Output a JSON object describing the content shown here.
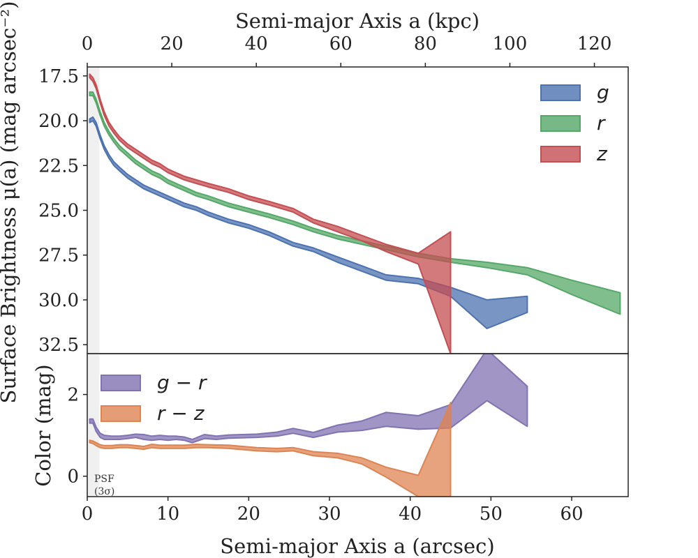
{
  "chart_data": [
    {
      "type": "area",
      "panel": "surface-brightness",
      "top_xlabel": "Semi-major Axis a (kpc)",
      "top_xlim": [
        0,
        128
      ],
      "top_xticks": [
        0,
        20,
        40,
        60,
        80,
        100,
        120
      ],
      "ylabel": "Surface Brightness μ(a) (mag arcsec⁻²)",
      "ylim": [
        17,
        33
      ],
      "y_inverted": true,
      "yticks": [
        "17.5",
        "20.0",
        "22.5",
        "25.0",
        "27.5",
        "30.0",
        "32.5"
      ],
      "ytick_values": [
        17.5,
        20.0,
        22.5,
        25.0,
        27.5,
        30.0,
        32.5
      ],
      "xlim": [
        0,
        67
      ],
      "legend_position": "top-right",
      "psf_band_x": [
        0,
        1.5
      ],
      "series": [
        {
          "name": "g",
          "color": "#4c72b0",
          "points": [
            [
              0.3,
              19.9,
              20.1
            ],
            [
              0.7,
              19.8,
              20.0
            ],
            [
              1.1,
              20.1,
              20.3
            ],
            [
              1.6,
              20.8,
              21.0
            ],
            [
              2.1,
              21.4,
              21.6
            ],
            [
              2.7,
              21.9,
              22.1
            ],
            [
              3.3,
              22.3,
              22.5
            ],
            [
              4.0,
              22.6,
              22.8
            ],
            [
              5.0,
              23.0,
              23.2
            ],
            [
              6.0,
              23.3,
              23.5
            ],
            [
              7.0,
              23.6,
              23.8
            ],
            [
              8.0,
              23.8,
              24.0
            ],
            [
              9.0,
              24.0,
              24.2
            ],
            [
              10.0,
              24.2,
              24.4
            ],
            [
              11.0,
              24.4,
              24.6
            ],
            [
              12.0,
              24.6,
              24.8
            ],
            [
              13.5,
              24.8,
              25.0
            ],
            [
              15.0,
              25.1,
              25.3
            ],
            [
              17.5,
              25.5,
              25.7
            ],
            [
              20.0,
              25.8,
              26.0
            ],
            [
              22.5,
              26.2,
              26.4
            ],
            [
              25.5,
              26.8,
              27.0
            ],
            [
              28.0,
              27.1,
              27.3
            ],
            [
              31.0,
              27.6,
              27.9
            ],
            [
              34.0,
              28.1,
              28.4
            ],
            [
              37.0,
              28.6,
              28.9
            ],
            [
              41.0,
              28.8,
              29.1
            ],
            [
              45.0,
              29.3,
              29.8
            ],
            [
              49.5,
              30.0,
              31.6
            ],
            [
              54.5,
              29.8,
              30.7
            ]
          ]
        },
        {
          "name": "r",
          "color": "#55a868",
          "points": [
            [
              0.3,
              18.4,
              18.6
            ],
            [
              0.7,
              18.4,
              18.6
            ],
            [
              1.1,
              18.8,
              19.0
            ],
            [
              1.6,
              19.5,
              19.7
            ],
            [
              2.1,
              20.1,
              20.3
            ],
            [
              2.7,
              20.6,
              20.8
            ],
            [
              3.3,
              21.0,
              21.2
            ],
            [
              4.0,
              21.4,
              21.6
            ],
            [
              5.0,
              21.8,
              22.0
            ],
            [
              6.0,
              22.2,
              22.4
            ],
            [
              7.0,
              22.5,
              22.7
            ],
            [
              8.0,
              22.8,
              23.0
            ],
            [
              9.0,
              23.0,
              23.2
            ],
            [
              10.0,
              23.3,
              23.5
            ],
            [
              11.0,
              23.5,
              23.7
            ],
            [
              12.0,
              23.7,
              23.9
            ],
            [
              13.5,
              24.0,
              24.2
            ],
            [
              15.0,
              24.2,
              24.4
            ],
            [
              17.5,
              24.6,
              24.8
            ],
            [
              20.0,
              24.9,
              25.1
            ],
            [
              22.5,
              25.2,
              25.4
            ],
            [
              25.5,
              25.6,
              25.8
            ],
            [
              28.0,
              26.0,
              26.2
            ],
            [
              31.0,
              26.4,
              26.6
            ],
            [
              34.0,
              26.7,
              26.9
            ],
            [
              37.0,
              27.0,
              27.2
            ],
            [
              41.0,
              27.4,
              27.6
            ],
            [
              45.0,
              27.7,
              27.9
            ],
            [
              49.5,
              27.9,
              28.2
            ],
            [
              54.5,
              28.2,
              28.6
            ],
            [
              60.0,
              28.9,
              29.7
            ],
            [
              66.0,
              29.6,
              30.8
            ]
          ]
        },
        {
          "name": "z",
          "color": "#c44e52",
          "points": [
            [
              0.3,
              17.4,
              17.6
            ],
            [
              0.7,
              17.6,
              17.8
            ],
            [
              1.1,
              18.0,
              18.2
            ],
            [
              1.6,
              18.8,
              19.0
            ],
            [
              2.1,
              19.5,
              19.7
            ],
            [
              2.7,
              20.1,
              20.3
            ],
            [
              3.3,
              20.5,
              20.7
            ],
            [
              4.0,
              20.9,
              21.1
            ],
            [
              5.0,
              21.3,
              21.5
            ],
            [
              6.0,
              21.6,
              21.8
            ],
            [
              7.0,
              21.9,
              22.1
            ],
            [
              8.0,
              22.2,
              22.4
            ],
            [
              9.0,
              22.4,
              22.6
            ],
            [
              10.0,
              22.7,
              22.9
            ],
            [
              11.0,
              22.9,
              23.1
            ],
            [
              12.0,
              23.1,
              23.3
            ],
            [
              13.5,
              23.3,
              23.5
            ],
            [
              15.0,
              23.5,
              23.7
            ],
            [
              17.5,
              23.8,
              24.0
            ],
            [
              20.0,
              24.2,
              24.4
            ],
            [
              22.5,
              24.5,
              24.7
            ],
            [
              25.5,
              24.9,
              25.1
            ],
            [
              28.0,
              25.5,
              25.7
            ],
            [
              31.0,
              25.9,
              26.2
            ],
            [
              34.0,
              26.4,
              26.7
            ],
            [
              37.0,
              26.9,
              27.3
            ],
            [
              41.0,
              27.4,
              28.0
            ],
            [
              45.0,
              26.2,
              33.0
            ]
          ]
        }
      ]
    },
    {
      "type": "area",
      "panel": "color",
      "xlabel": "Semi-major Axis a (arcsec)",
      "xlim": [
        0,
        67
      ],
      "xticks": [
        0,
        10,
        20,
        30,
        40,
        50,
        60
      ],
      "ylabel": "Color (mag)",
      "ylim": [
        -0.5,
        3.0
      ],
      "yticks": [
        0,
        2
      ],
      "legend_position": "top-left",
      "psf_label_line1": "PSF",
      "psf_label_line2": "(3σ)",
      "series": [
        {
          "name": "g − r",
          "color": "#8172b2",
          "points": [
            [
              0.3,
              1.3,
              1.4
            ],
            [
              0.7,
              1.3,
              1.4
            ],
            [
              1.1,
              1.1,
              1.2
            ],
            [
              1.6,
              0.95,
              1.05
            ],
            [
              2.1,
              0.9,
              1.0
            ],
            [
              3.0,
              0.9,
              0.98
            ],
            [
              4.0,
              0.9,
              0.98
            ],
            [
              5.0,
              0.92,
              1.0
            ],
            [
              6.0,
              0.95,
              1.03
            ],
            [
              7.0,
              0.9,
              1.02
            ],
            [
              8.0,
              0.88,
              0.98
            ],
            [
              9.0,
              0.9,
              1.0
            ],
            [
              10.0,
              0.88,
              0.98
            ],
            [
              11.0,
              0.9,
              0.98
            ],
            [
              12.0,
              0.88,
              0.96
            ],
            [
              13.0,
              0.82,
              0.9
            ],
            [
              14.5,
              0.92,
              1.02
            ],
            [
              16.0,
              0.9,
              0.98
            ],
            [
              17.5,
              0.93,
              1.01
            ],
            [
              21.0,
              0.95,
              1.03
            ],
            [
              23.5,
              0.98,
              1.08
            ],
            [
              25.5,
              1.05,
              1.17
            ],
            [
              28.0,
              0.95,
              1.07
            ],
            [
              31.0,
              1.08,
              1.25
            ],
            [
              34.0,
              1.12,
              1.35
            ],
            [
              37.0,
              1.22,
              1.56
            ],
            [
              41.0,
              1.15,
              1.48
            ],
            [
              45.0,
              1.18,
              1.75
            ],
            [
              49.5,
              1.85,
              3.1
            ],
            [
              54.5,
              1.22,
              2.2
            ]
          ]
        },
        {
          "name": "r − z",
          "color": "#dd8452",
          "points": [
            [
              0.3,
              0.82,
              0.88
            ],
            [
              0.7,
              0.8,
              0.86
            ],
            [
              1.1,
              0.75,
              0.82
            ],
            [
              1.6,
              0.7,
              0.77
            ],
            [
              2.1,
              0.68,
              0.75
            ],
            [
              3.0,
              0.68,
              0.75
            ],
            [
              4.0,
              0.7,
              0.77
            ],
            [
              5.0,
              0.7,
              0.77
            ],
            [
              6.0,
              0.68,
              0.75
            ],
            [
              7.0,
              0.66,
              0.73
            ],
            [
              8.0,
              0.7,
              0.78
            ],
            [
              9.0,
              0.68,
              0.76
            ],
            [
              10.0,
              0.68,
              0.76
            ],
            [
              12.0,
              0.68,
              0.76
            ],
            [
              13.5,
              0.7,
              0.78
            ],
            [
              15.0,
              0.7,
              0.77
            ],
            [
              17.5,
              0.68,
              0.76
            ],
            [
              21.0,
              0.62,
              0.7
            ],
            [
              23.5,
              0.6,
              0.68
            ],
            [
              25.5,
              0.62,
              0.7
            ],
            [
              28.0,
              0.5,
              0.6
            ],
            [
              31.0,
              0.45,
              0.56
            ],
            [
              34.0,
              0.3,
              0.45
            ],
            [
              37.0,
              -0.02,
              0.22
            ],
            [
              41.0,
              -0.5,
              0.02
            ],
            [
              45.0,
              -0.5,
              1.8
            ]
          ]
        }
      ]
    }
  ]
}
